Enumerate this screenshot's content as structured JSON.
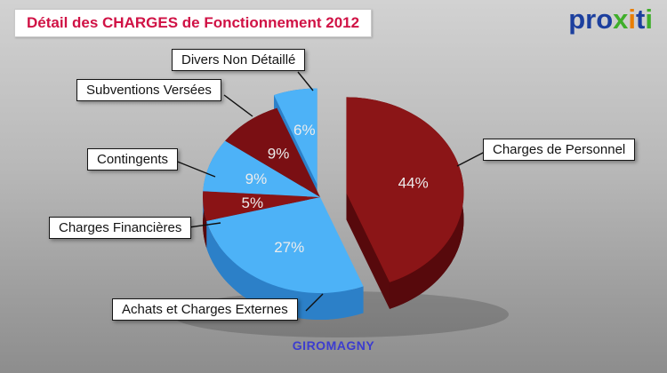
{
  "title": {
    "text": "Détail des CHARGES de Fonctionnement 2012",
    "color": "#d01245"
  },
  "logo": {
    "name": "proxiti",
    "letters": [
      {
        "ch": "p",
        "color": "#1c3f9e"
      },
      {
        "ch": "r",
        "color": "#1c3f9e"
      },
      {
        "ch": "o",
        "color": "#1c3f9e"
      },
      {
        "ch": "x",
        "color": "#3fae2a"
      },
      {
        "ch": "i",
        "color": "#e87e04"
      },
      {
        "ch": "t",
        "color": "#1c3f9e"
      },
      {
        "ch": "i",
        "color": "#3fae2a"
      }
    ]
  },
  "footer": {
    "city": "GIROMAGNY",
    "color": "#3c3ccf"
  },
  "chart_data": {
    "type": "pie",
    "title": "Détail des CHARGES de Fonctionnement 2012",
    "unit": "%",
    "start_angle_deg": -90,
    "legend_position": "callout labels around pie",
    "style": "3d exploded pie",
    "percent_labels": [
      "44%",
      "27%",
      "5%",
      "9%",
      "9%",
      "6%"
    ],
    "slices": [
      {
        "label": "Charges de Personnel",
        "value": 44,
        "color": "#8b1517",
        "side_color": "#57090c",
        "explode": 30
      },
      {
        "label": "Achats et Charges Externes",
        "value": 27,
        "color": "#4db2f7",
        "side_color": "#2c80c8",
        "explode": 0
      },
      {
        "label": "Charges Financières",
        "value": 5,
        "color": "#8a1315",
        "side_color": "#57090c",
        "explode": 0
      },
      {
        "label": "Contingents",
        "value": 9,
        "color": "#4db2f7",
        "side_color": "#2c80c8",
        "explode": 0
      },
      {
        "label": "Subventions Versées",
        "value": 9,
        "color": "#7a0f13",
        "side_color": "#4c080a",
        "explode": 0
      },
      {
        "label": "Divers Non Détaillé",
        "value": 6,
        "color": "#4db2f7",
        "side_color": "#2c80c8",
        "explode": 18
      }
    ]
  }
}
